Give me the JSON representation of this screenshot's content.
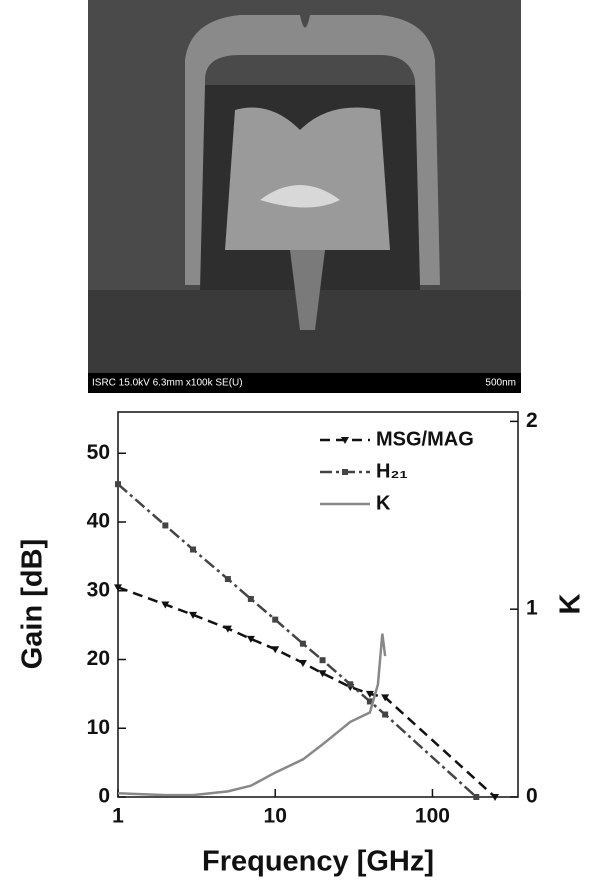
{
  "image": {
    "caption": "ISRC 15.0kV 6.3mm x100k SE(U)",
    "scale": "500nm"
  },
  "chart_data": {
    "type": "line",
    "xlabel": "Frequency [GHz]",
    "ylabel": "Gain [dB]",
    "y2label": "K",
    "xscale": "log",
    "xlim": [
      1,
      350
    ],
    "xticks": [
      1,
      10,
      100
    ],
    "ylim": [
      0,
      56
    ],
    "yticks": [
      0,
      10,
      20,
      30,
      40,
      50
    ],
    "y2lim": [
      0,
      2.05
    ],
    "y2ticks": [
      0,
      1,
      2
    ],
    "legend": "upper right",
    "series": [
      {
        "name": "MSG/MAG",
        "color": "#111111",
        "dash": "10,6",
        "marker": "triangle-down",
        "x": [
          1,
          2,
          3,
          5,
          7,
          10,
          15,
          20,
          30,
          40,
          50,
          250
        ],
        "values": [
          30.5,
          28,
          26.5,
          24.5,
          23,
          21.5,
          19.5,
          18,
          16,
          15,
          14.5,
          0
        ]
      },
      {
        "name": "H₂₁",
        "color": "#444444",
        "dash": "12,4,3,4",
        "marker": "square",
        "x": [
          1,
          2,
          3,
          5,
          7,
          10,
          15,
          20,
          30,
          40,
          50,
          190
        ],
        "values": [
          45.5,
          39.5,
          36,
          31.7,
          28.8,
          25.8,
          22.3,
          19.9,
          16.4,
          13.9,
          12,
          0
        ]
      },
      {
        "name": "K",
        "color": "#888888",
        "dash": "none",
        "marker": "none",
        "axis": "y2",
        "x": [
          1,
          2,
          3,
          5,
          7,
          10,
          15,
          20,
          30,
          40,
          45,
          48,
          50
        ],
        "values": [
          0.02,
          0.01,
          0.01,
          0.03,
          0.06,
          0.13,
          0.2,
          0.28,
          0.4,
          0.45,
          0.6,
          0.87,
          0.75
        ]
      }
    ]
  }
}
